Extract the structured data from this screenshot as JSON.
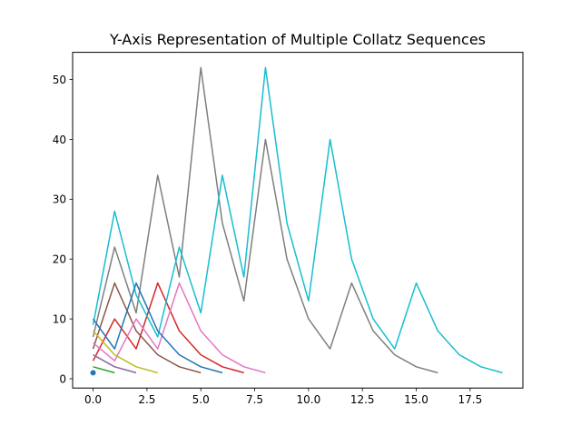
{
  "chart_data": {
    "type": "line",
    "title": "Y-Axis Representation of Multiple Collatz Sequences",
    "xlabel": "",
    "ylabel": "",
    "xlim": [
      -0.95,
      19.95
    ],
    "ylim": [
      -1.55,
      54.55
    ],
    "xticks": [
      0,
      2.5,
      5,
      7.5,
      10,
      12.5,
      15,
      17.5
    ],
    "xtick_labels": [
      "0.0",
      "2.5",
      "5.0",
      "7.5",
      "10.0",
      "12.5",
      "15.0",
      "17.5"
    ],
    "yticks": [
      0,
      10,
      20,
      30,
      40,
      50
    ],
    "ytick_labels": [
      "0",
      "10",
      "20",
      "30",
      "40",
      "50"
    ],
    "grid": false,
    "legend": "none",
    "series": [
      {
        "color": "#1f77b4",
        "marker": true,
        "values": [
          1
        ]
      },
      {
        "color": "#2ca02c",
        "values": [
          2,
          1
        ]
      },
      {
        "color": "#d62728",
        "values": [
          3,
          10,
          5,
          16,
          8,
          4,
          2,
          1
        ]
      },
      {
        "color": "#bcbd22",
        "values": [
          4,
          2,
          1
        ]
      },
      {
        "color": "#9467bd",
        "values": [
          4,
          2,
          1
        ]
      },
      {
        "color": "#8c564b",
        "values": [
          5,
          16,
          8,
          4,
          2,
          1
        ]
      },
      {
        "color": "#e377c2",
        "values": [
          6,
          3,
          10,
          5,
          16,
          8,
          4,
          2,
          1
        ]
      },
      {
        "color": "#7f7f7f",
        "values": [
          7,
          22,
          11,
          34,
          17,
          52,
          26,
          13,
          40,
          20,
          10,
          5,
          16,
          8,
          4,
          2,
          1
        ]
      },
      {
        "color": "#bcbd22",
        "values": [
          8,
          4,
          2,
          1
        ]
      },
      {
        "color": "#17becf",
        "values": [
          9,
          28,
          14,
          7,
          22,
          11,
          34,
          17,
          52,
          26,
          13,
          40,
          20,
          10,
          5,
          16,
          8,
          4,
          2,
          1
        ]
      },
      {
        "color": "#1f77b4",
        "values": [
          10,
          5,
          16,
          8,
          4,
          2,
          1
        ]
      }
    ]
  }
}
